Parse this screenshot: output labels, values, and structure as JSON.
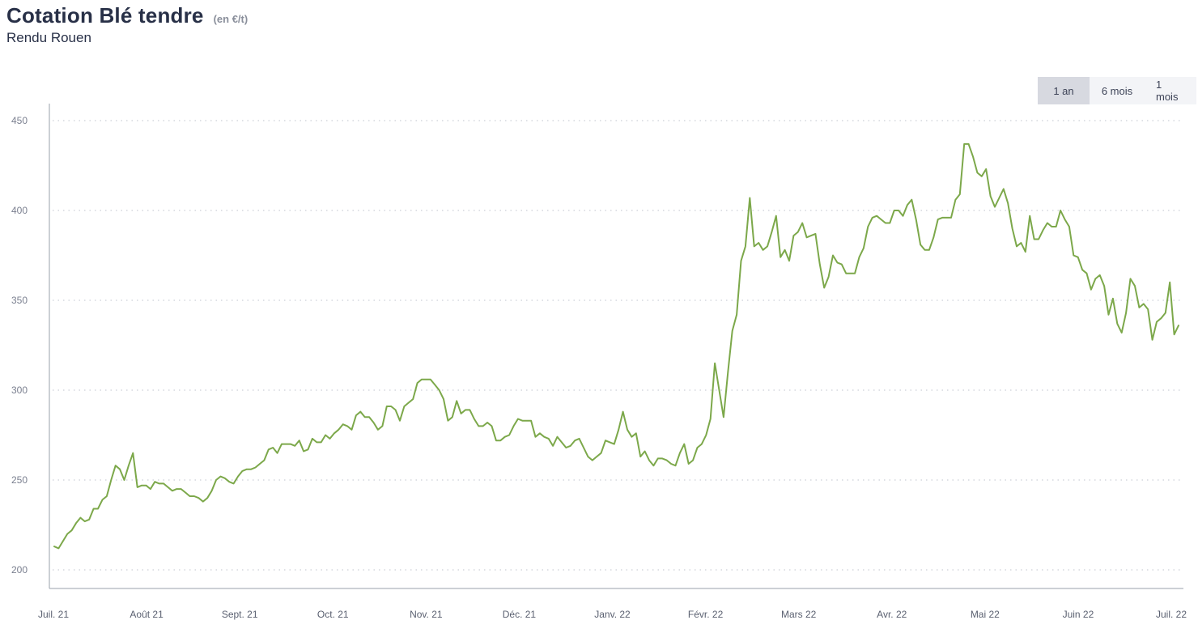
{
  "header": {
    "title": "Cotation Blé tendre",
    "unit": "(en €/t)",
    "subtitle": "Rendu Rouen"
  },
  "range_buttons": [
    {
      "label": "1 an",
      "active": true
    },
    {
      "label": "6 mois",
      "active": false
    },
    {
      "label": "1 mois",
      "active": false
    }
  ],
  "colors": {
    "line": "#7ca84a",
    "grid": "#bfc3cc",
    "axis": "#9aa0ab"
  },
  "chart_data": {
    "type": "line",
    "title": "Cotation Blé tendre",
    "ylabel": "(en €/t)",
    "ylim": [
      200,
      450
    ],
    "yticks": [
      200,
      250,
      300,
      350,
      400,
      450
    ],
    "x_tick_labels": [
      "Juil. 21",
      "Août 21",
      "Sept. 21",
      "Oct. 21",
      "Nov. 21",
      "Déc. 21",
      "Janv. 22",
      "Févr. 22",
      "Mars 22",
      "Avr. 22",
      "Mai 22",
      "Juin 22",
      "Juil. 22"
    ],
    "grid": true,
    "series": [
      {
        "values": [
          213,
          212,
          216,
          220,
          222,
          226,
          229,
          227,
          228,
          234,
          234,
          239,
          241,
          250,
          258,
          256,
          250,
          258,
          265,
          246,
          247,
          247,
          245,
          249,
          248,
          248,
          246,
          244,
          245,
          245,
          243,
          241,
          241,
          240,
          238,
          240,
          244,
          250,
          252,
          251,
          249,
          248,
          252,
          255,
          256,
          256,
          257,
          259,
          261,
          267,
          268,
          265,
          270,
          270,
          270,
          269,
          272,
          266,
          267,
          273,
          271,
          271,
          275,
          273,
          276,
          278,
          281,
          280,
          278,
          286,
          288,
          285,
          285,
          282,
          278,
          280,
          291,
          291,
          289,
          283,
          291,
          293,
          295,
          304,
          306,
          306,
          306,
          303,
          300,
          295,
          283,
          285,
          294,
          287,
          289,
          289,
          284,
          280,
          280,
          282,
          280,
          272,
          272,
          274,
          275,
          280,
          284,
          283,
          283,
          283,
          274,
          276,
          274,
          273,
          269,
          274,
          271,
          268,
          269,
          272,
          273,
          268,
          263,
          261,
          263,
          265,
          272,
          271,
          270,
          278,
          288,
          278,
          274,
          276,
          263,
          266,
          261,
          258,
          262,
          262,
          261,
          259,
          258,
          265,
          270,
          259,
          261,
          268,
          270,
          275,
          284,
          315,
          300,
          285,
          310,
          333,
          342,
          372,
          380,
          407,
          380,
          382,
          378,
          380,
          388,
          397,
          374,
          378,
          372,
          386,
          388,
          393,
          385,
          386,
          387,
          370,
          357,
          363,
          375,
          371,
          370,
          365,
          365,
          365,
          374,
          379,
          391,
          396,
          397,
          395,
          393,
          393,
          400,
          400,
          397,
          403,
          406,
          395,
          381,
          378,
          378,
          385,
          395,
          396,
          396,
          396,
          406,
          409,
          437,
          437,
          430,
          421,
          419,
          423,
          408,
          402,
          407,
          412,
          404,
          390,
          380,
          382,
          377,
          397,
          384,
          384,
          389,
          393,
          391,
          391,
          400,
          395,
          391,
          375,
          374,
          367,
          365,
          356,
          362,
          364,
          358,
          342,
          351,
          337,
          332,
          343,
          362,
          358,
          346,
          348,
          345,
          328,
          338,
          340,
          343,
          360,
          331,
          336
        ]
      }
    ]
  }
}
